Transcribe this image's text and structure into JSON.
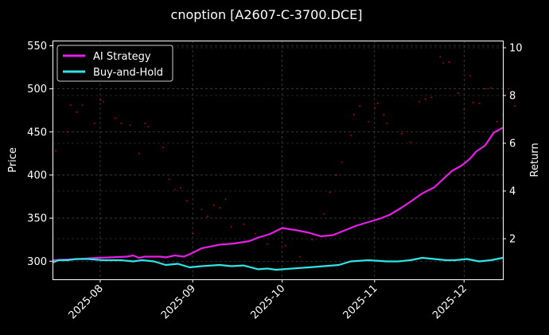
{
  "chart_data": {
    "type": "line",
    "title": "cnoption [A2607-C-3700.DCE]",
    "xlabel": "",
    "ylabel": "Price",
    "y2label": "Return",
    "x_range": [
      "2025-07-16",
      "2025-12-14"
    ],
    "ylim": [
      279,
      556
    ],
    "y2lim": [
      0.3,
      10.3
    ],
    "x_ticks": [
      "2025-08-01",
      "2025-09-01",
      "2025-10-01",
      "2025-11-01",
      "2025-12-01"
    ],
    "x_tick_labels": [
      "2025-08",
      "2025-09",
      "2025-10",
      "2025-11",
      "2025-12"
    ],
    "y_ticks": [
      300,
      350,
      400,
      450,
      500,
      550
    ],
    "y2_ticks": [
      2,
      4,
      6,
      8,
      10
    ],
    "grid": true,
    "legend_position": "top-left",
    "colors": {
      "background": "#000000",
      "ai": "#e61ee6",
      "bh": "#2ee6e6",
      "price": "#ff0000"
    },
    "series": [
      {
        "name": "AI Strategy",
        "axis": "right",
        "points": [
          [
            "2025-07-16",
            1.1
          ],
          [
            "2025-07-20",
            1.12
          ],
          [
            "2025-07-25",
            1.15
          ],
          [
            "2025-07-31",
            1.2
          ],
          [
            "2025-08-05",
            1.22
          ],
          [
            "2025-08-10",
            1.25
          ],
          [
            "2025-08-12",
            1.3
          ],
          [
            "2025-08-14",
            1.2
          ],
          [
            "2025-08-16",
            1.25
          ],
          [
            "2025-08-21",
            1.25
          ],
          [
            "2025-08-23",
            1.22
          ],
          [
            "2025-08-26",
            1.3
          ],
          [
            "2025-08-29",
            1.25
          ],
          [
            "2025-08-31",
            1.35
          ],
          [
            "2025-09-04",
            1.6
          ],
          [
            "2025-09-10",
            1.75
          ],
          [
            "2025-09-15",
            1.8
          ],
          [
            "2025-09-20",
            1.9
          ],
          [
            "2025-09-23",
            2.05
          ],
          [
            "2025-09-27",
            2.2
          ],
          [
            "2025-10-01",
            2.45
          ],
          [
            "2025-10-06",
            2.35
          ],
          [
            "2025-10-10",
            2.25
          ],
          [
            "2025-10-14",
            2.1
          ],
          [
            "2025-10-18",
            2.15
          ],
          [
            "2025-10-21",
            2.3
          ],
          [
            "2025-10-26",
            2.55
          ],
          [
            "2025-10-30",
            2.7
          ],
          [
            "2025-11-03",
            2.85
          ],
          [
            "2025-11-06",
            3.0
          ],
          [
            "2025-11-10",
            3.3
          ],
          [
            "2025-11-13",
            3.55
          ],
          [
            "2025-11-17",
            3.9
          ],
          [
            "2025-11-21",
            4.15
          ],
          [
            "2025-11-24",
            4.5
          ],
          [
            "2025-11-27",
            4.85
          ],
          [
            "2025-11-30",
            5.05
          ],
          [
            "2025-12-03",
            5.35
          ],
          [
            "2025-12-05",
            5.65
          ],
          [
            "2025-12-08",
            5.9
          ],
          [
            "2025-12-11",
            6.45
          ],
          [
            "2025-12-14",
            6.65
          ]
        ]
      },
      {
        "name": "Buy-and-Hold",
        "axis": "right",
        "points": [
          [
            "2025-07-16",
            1.0
          ],
          [
            "2025-07-18",
            1.1
          ],
          [
            "2025-07-21",
            1.1
          ],
          [
            "2025-07-24",
            1.15
          ],
          [
            "2025-07-28",
            1.15
          ],
          [
            "2025-08-02",
            1.1
          ],
          [
            "2025-08-08",
            1.1
          ],
          [
            "2025-08-12",
            1.05
          ],
          [
            "2025-08-15",
            1.1
          ],
          [
            "2025-08-19",
            1.05
          ],
          [
            "2025-08-23",
            0.9
          ],
          [
            "2025-08-27",
            0.95
          ],
          [
            "2025-08-31",
            0.8
          ],
          [
            "2025-09-04",
            0.85
          ],
          [
            "2025-09-10",
            0.9
          ],
          [
            "2025-09-14",
            0.85
          ],
          [
            "2025-09-18",
            0.88
          ],
          [
            "2025-09-23",
            0.72
          ],
          [
            "2025-09-26",
            0.75
          ],
          [
            "2025-09-29",
            0.7
          ],
          [
            "2025-10-02",
            0.73
          ],
          [
            "2025-10-10",
            0.8
          ],
          [
            "2025-10-20",
            0.9
          ],
          [
            "2025-10-24",
            1.05
          ],
          [
            "2025-10-30",
            1.1
          ],
          [
            "2025-11-05",
            1.05
          ],
          [
            "2025-11-09",
            1.05
          ],
          [
            "2025-11-13",
            1.1
          ],
          [
            "2025-11-17",
            1.2
          ],
          [
            "2025-11-21",
            1.15
          ],
          [
            "2025-11-25",
            1.1
          ],
          [
            "2025-11-28",
            1.1
          ],
          [
            "2025-12-02",
            1.15
          ],
          [
            "2025-12-06",
            1.05
          ],
          [
            "2025-12-10",
            1.1
          ],
          [
            "2025-12-14",
            1.2
          ]
        ]
      },
      {
        "name": "",
        "axis": "left",
        "style": "points",
        "points": [
          [
            "2025-07-17",
            428
          ],
          [
            "2025-07-21",
            450
          ],
          [
            "2025-07-22",
            481
          ],
          [
            "2025-07-24",
            473
          ],
          [
            "2025-07-26",
            481
          ],
          [
            "2025-07-30",
            460
          ],
          [
            "2025-08-01",
            487
          ],
          [
            "2025-08-02",
            485
          ],
          [
            "2025-08-06",
            466
          ],
          [
            "2025-08-08",
            460
          ],
          [
            "2025-08-11",
            458
          ],
          [
            "2025-08-14",
            425
          ],
          [
            "2025-08-16",
            460
          ],
          [
            "2025-08-17",
            456
          ],
          [
            "2025-08-22",
            432
          ],
          [
            "2025-08-24",
            395
          ],
          [
            "2025-08-26",
            383
          ],
          [
            "2025-08-28",
            385
          ],
          [
            "2025-08-30",
            370
          ],
          [
            "2025-09-01",
            332
          ],
          [
            "2025-09-04",
            360
          ],
          [
            "2025-09-06",
            352
          ],
          [
            "2025-09-08",
            365
          ],
          [
            "2025-09-10",
            362
          ],
          [
            "2025-09-12",
            372
          ],
          [
            "2025-09-14",
            340
          ],
          [
            "2025-09-18",
            343
          ],
          [
            "2025-09-22",
            332
          ],
          [
            "2025-09-26",
            320
          ],
          [
            "2025-10-02",
            318
          ],
          [
            "2025-10-07",
            305
          ],
          [
            "2025-10-11",
            325
          ],
          [
            "2025-10-15",
            355
          ],
          [
            "2025-10-17",
            380
          ],
          [
            "2025-10-19",
            400
          ],
          [
            "2025-10-21",
            415
          ],
          [
            "2025-10-24",
            446
          ],
          [
            "2025-10-25",
            470
          ],
          [
            "2025-10-27",
            480
          ],
          [
            "2025-10-30",
            462
          ],
          [
            "2025-11-01",
            478
          ],
          [
            "2025-11-02",
            483
          ],
          [
            "2025-11-04",
            470
          ],
          [
            "2025-11-05",
            460
          ],
          [
            "2025-11-10",
            448
          ],
          [
            "2025-11-13",
            438
          ],
          [
            "2025-11-16",
            485
          ],
          [
            "2025-11-18",
            488
          ],
          [
            "2025-11-20",
            490
          ],
          [
            "2025-11-23",
            537
          ],
          [
            "2025-11-24",
            530
          ],
          [
            "2025-11-26",
            531
          ],
          [
            "2025-11-29",
            495
          ],
          [
            "2025-12-01",
            476
          ],
          [
            "2025-12-03",
            515
          ],
          [
            "2025-12-04",
            484
          ],
          [
            "2025-12-06",
            483
          ],
          [
            "2025-12-08",
            500
          ],
          [
            "2025-12-10",
            501
          ],
          [
            "2025-12-12",
            462
          ],
          [
            "2025-12-14",
            470
          ],
          [
            "2025-12-16",
            500
          ],
          [
            "2025-12-18",
            480
          ]
        ]
      }
    ]
  }
}
